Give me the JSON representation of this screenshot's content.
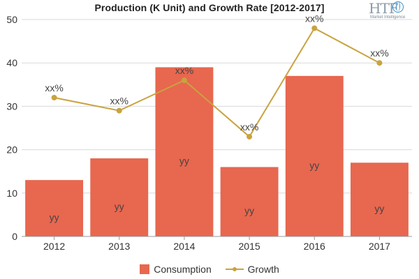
{
  "chart_data": {
    "type": "bar",
    "title": "Production (K Unit) and Growth Rate [2012-2017]",
    "categories": [
      "2012",
      "2013",
      "2014",
      "2015",
      "2016",
      "2017"
    ],
    "ylim": [
      0,
      50
    ],
    "yticks": [
      0,
      10,
      20,
      30,
      40,
      50
    ],
    "grid": true,
    "legend_position": "bottom",
    "series": [
      {
        "name": "Consumption",
        "type": "bar",
        "color": "#e8674f",
        "values": [
          13,
          18,
          39,
          16,
          37,
          17
        ],
        "labels": [
          "yy",
          "yy",
          "yy",
          "yy",
          "yy",
          "yy"
        ]
      },
      {
        "name": "Growth",
        "type": "line",
        "color": "#c9a33f",
        "values": [
          32,
          29,
          36,
          23,
          48,
          40
        ],
        "labels": [
          "xx%",
          "xx%",
          "xx%",
          "xx%",
          "xx%",
          "xx%"
        ]
      }
    ]
  },
  "watermark": {
    "letters": "HTF",
    "subtitle": "Market Intelligence"
  }
}
